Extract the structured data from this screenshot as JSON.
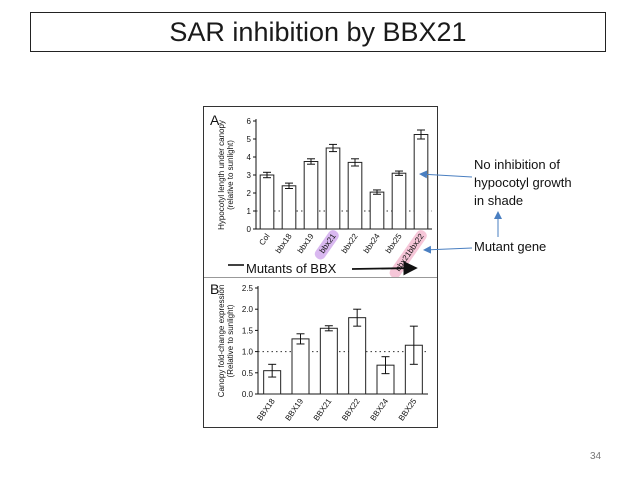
{
  "slide": {
    "title": "SAR inhibition by BBX21",
    "page_number": "34"
  },
  "annotations": {
    "no_inhibition_line1": "No inhibition of",
    "no_inhibition_line2": "hypocotyl growth",
    "no_inhibition_line3": "in shade",
    "mutant_gene": "Mutant gene",
    "mutants_of_bbx": "Mutants of BBX"
  },
  "colors": {
    "highlight_bbx21": "#d9b8f0",
    "highlight_double": "#f6c6d8",
    "arrow_blue": "#4a7fc1",
    "bar_fill": "#ffffff",
    "bar_stroke": "#222222"
  },
  "chart_data": [
    {
      "type": "bar",
      "panel_label": "A",
      "categories": [
        "Col",
        "bbx18",
        "bbx19",
        "bbx21",
        "bbx22",
        "bbx24",
        "bbx25",
        "bbx21bbx22"
      ],
      "values": [
        3.0,
        2.4,
        3.75,
        4.5,
        3.7,
        2.05,
        3.1,
        5.25
      ],
      "errors": [
        0.15,
        0.15,
        0.15,
        0.2,
        0.2,
        0.12,
        0.12,
        0.25
      ],
      "ylabel": "Hypocotyl length under canopy (relative to sunlight)",
      "ylim": [
        0,
        6
      ],
      "yticks": [
        "0",
        "1",
        "2",
        "3",
        "4",
        "5",
        "6"
      ],
      "reference_line": 1,
      "highlighted_categories": [
        "bbx21",
        "bbx21bbx22"
      ]
    },
    {
      "type": "bar",
      "panel_label": "B",
      "categories": [
        "BBX18",
        "BBX19",
        "BBX21",
        "BBX22",
        "BBX24",
        "BBX25"
      ],
      "values": [
        0.55,
        1.3,
        1.55,
        1.8,
        0.68,
        1.15
      ],
      "errors": [
        0.15,
        0.12,
        0.06,
        0.2,
        0.2,
        0.45
      ],
      "ylabel": "Canopy fold-change expression (Relative to sunlight)",
      "ylim": [
        0,
        2.5
      ],
      "yticks": [
        "0.0",
        "0.5",
        "1.0",
        "1.5",
        "2.0",
        "2.5"
      ],
      "reference_line": 1
    }
  ]
}
